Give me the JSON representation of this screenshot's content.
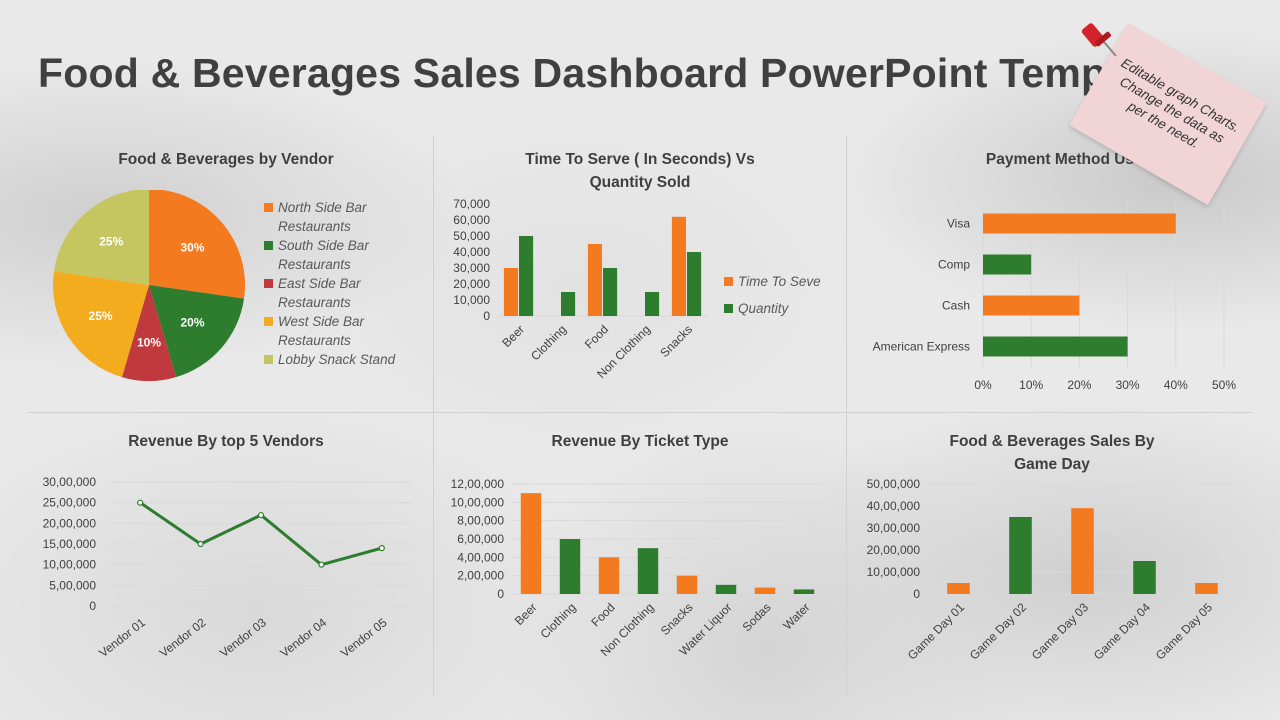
{
  "page": {
    "title": "Food & Beverages Sales Dashboard PowerPoint Temp"
  },
  "note": {
    "text": "Editable graph Charts. Change the data as per the need."
  },
  "colors": {
    "orange": "#F47A20",
    "green": "#2E7D2E",
    "red": "#C0393E",
    "yellow": "#F2AC1E",
    "lime": "#C5C660",
    "gridline": "#D9D9D9"
  },
  "chart_data": [
    {
      "id": "vendor_pie",
      "type": "pie",
      "title": "Food & Beverages by Vendor",
      "labels": [
        "North Side Bar Restaurants",
        "South Side Bar Restaurants",
        "East Side Bar Restaurants",
        "West Side Bar Restaurants",
        "Lobby Snack Stand"
      ],
      "legend_lines": [
        [
          "North Side Bar",
          "Restaurants"
        ],
        [
          "South Side Bar",
          "Restaurants"
        ],
        [
          "East Side Bar",
          "Restaurants"
        ],
        [
          "West Side Bar",
          "Restaurants"
        ],
        [
          "Lobby Snack Stand"
        ]
      ],
      "values": [
        30,
        20,
        10,
        25,
        25
      ],
      "value_labels": [
        "30%",
        "20%",
        "10%",
        "25%",
        "25%"
      ],
      "colors": [
        "#F47A20",
        "#2E7D2E",
        "#C0393E",
        "#F2AC1E",
        "#C5C660"
      ],
      "legend_position": "right"
    },
    {
      "id": "time_to_serve",
      "type": "bar",
      "title": "Time To Serve ( In Seconds) Vs Quantity Sold",
      "title_lines": [
        "Time To Serve ( In Seconds) Vs",
        "Quantity Sold"
      ],
      "categories": [
        "Beer",
        "Clothing",
        "Food",
        "Non Clothing",
        "Snacks"
      ],
      "series": [
        {
          "name": "Time To Seve",
          "values": [
            30000,
            0,
            45000,
            0,
            62000
          ],
          "color": "#F47A20"
        },
        {
          "name": "Quantity",
          "values": [
            50000,
            15000,
            30000,
            15000,
            40000
          ],
          "color": "#2E7D2E"
        }
      ],
      "ylim": [
        0,
        70000
      ],
      "yticks": [
        "0",
        "10,000",
        "20,000",
        "30,000",
        "40,000",
        "50,000",
        "60,000",
        "70,000"
      ],
      "grid": false,
      "legend_position": "right"
    },
    {
      "id": "payment_method",
      "type": "bar",
      "orientation": "horizontal",
      "title": "Payment Method Us",
      "categories": [
        "Visa",
        "Comp",
        "Cash",
        "American Express"
      ],
      "values": [
        40,
        10,
        20,
        30
      ],
      "colors": [
        "#F47A20",
        "#2E7D2E",
        "#F47A20",
        "#2E7D2E"
      ],
      "xlim": [
        0,
        50
      ],
      "xticks": [
        "0%",
        "10%",
        "20%",
        "30%",
        "40%",
        "50%"
      ],
      "grid": true
    },
    {
      "id": "top5_vendors",
      "type": "line",
      "title": "Revenue By top 5 Vendors",
      "categories": [
        "Vendor 01",
        "Vendor 02",
        "Vendor 03",
        "Vendor 04",
        "Vendor 05"
      ],
      "values": [
        2500000,
        1500000,
        2200000,
        1000000,
        1400000
      ],
      "color": "#2E7D2E",
      "ylim": [
        0,
        3000000
      ],
      "yticks": [
        "0",
        "5,00,000",
        "10,00,000",
        "15,00,000",
        "20,00,000",
        "25,00,000",
        "30,00,000"
      ],
      "grid": true
    },
    {
      "id": "ticket_type",
      "type": "bar",
      "title": "Revenue By Ticket Type",
      "categories": [
        "Beer",
        "Clothing",
        "Food",
        "Non Clothing",
        "Snacks",
        "Water Liquor",
        "Sodas",
        "Water"
      ],
      "values": [
        1100000,
        600000,
        400000,
        500000,
        200000,
        100000,
        70000,
        50000
      ],
      "colors": [
        "#F47A20",
        "#2E7D2E",
        "#F47A20",
        "#2E7D2E",
        "#F47A20",
        "#2E7D2E",
        "#F47A20",
        "#2E7D2E"
      ],
      "ylim": [
        0,
        1200000
      ],
      "yticks": [
        "0",
        "2,00,000",
        "4,00,000",
        "6,00,000",
        "8,00,000",
        "10,00,000",
        "12,00,000"
      ],
      "grid": true
    },
    {
      "id": "game_day",
      "type": "bar",
      "title": "Food & Beverages Sales By Game Day",
      "title_lines": [
        "Food & Beverages Sales By",
        "Game Day"
      ],
      "categories": [
        "Game Day 01",
        "Game Day 02",
        "Game Day 03",
        "Game Day 04",
        "Game Day 05"
      ],
      "values": [
        500000,
        3500000,
        3900000,
        1500000,
        500000
      ],
      "colors": [
        "#F47A20",
        "#2E7D2E",
        "#F47A20",
        "#2E7D2E",
        "#F47A20"
      ],
      "ylim": [
        0,
        5000000
      ],
      "yticks": [
        "0",
        "10,00,000",
        "20,00,000",
        "30,00,000",
        "40,00,000",
        "50,00,000"
      ],
      "grid": true
    }
  ]
}
